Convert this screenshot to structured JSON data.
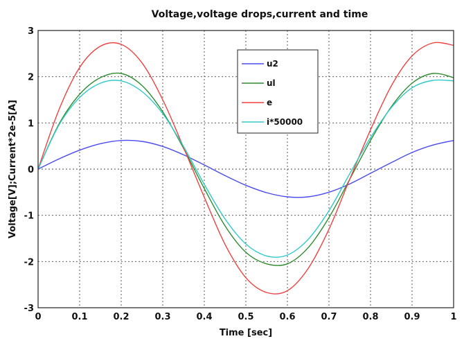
{
  "chart_data": {
    "type": "line",
    "title": "Voltage,voltage drops,current and time",
    "xlabel": "Time [sec]",
    "ylabel": "Voltage[V];Current*2e-5[A]",
    "xlim": [
      0,
      1
    ],
    "ylim": [
      -3,
      3
    ],
    "xticks": [
      "0",
      "0.1",
      "0.2",
      "0.3",
      "0.4",
      "0.5",
      "0.6",
      "0.7",
      "0.8",
      "0.9",
      "1"
    ],
    "yticks": [
      "3",
      "2",
      "1",
      "0",
      "-1",
      "-2",
      "-3"
    ],
    "grid": true,
    "legend_position": "top-center",
    "x": [
      0,
      0.05,
      0.1,
      0.15,
      0.2,
      0.25,
      0.3,
      0.35,
      0.4,
      0.45,
      0.5,
      0.55,
      0.6,
      0.65,
      0.7,
      0.75,
      0.8,
      0.85,
      0.9,
      0.95,
      1.0
    ],
    "series": [
      {
        "name": "u2",
        "color": "#4a4af0",
        "values": [
          0,
          0.22,
          0.41,
          0.55,
          0.62,
          0.6,
          0.49,
          0.31,
          0.09,
          -0.14,
          -0.35,
          -0.51,
          -0.6,
          -0.6,
          -0.5,
          -0.32,
          -0.09,
          0.14,
          0.36,
          0.52,
          0.62
        ]
      },
      {
        "name": "ul",
        "color": "#2e8b2e",
        "values": [
          0,
          0.97,
          1.62,
          1.98,
          2.07,
          1.81,
          1.24,
          0.45,
          -0.42,
          -1.23,
          -1.8,
          -2.05,
          -2.05,
          -1.7,
          -1.05,
          -0.22,
          0.62,
          1.35,
          1.86,
          2.07,
          1.98
        ]
      },
      {
        "name": "e",
        "color": "#f04040",
        "values": [
          0,
          1.28,
          2.2,
          2.66,
          2.7,
          2.3,
          1.5,
          0.47,
          -0.61,
          -1.63,
          -2.35,
          -2.67,
          -2.63,
          -2.15,
          -1.3,
          -0.22,
          0.85,
          1.8,
          2.45,
          2.73,
          2.68
        ]
      },
      {
        "name": "i*50000",
        "color": "#30c8c8",
        "values": [
          0,
          0.95,
          1.55,
          1.86,
          1.91,
          1.68,
          1.2,
          0.49,
          -0.33,
          -1.08,
          -1.62,
          -1.88,
          -1.86,
          -1.52,
          -0.9,
          -0.1,
          0.68,
          1.33,
          1.76,
          1.92,
          1.91
        ]
      }
    ]
  }
}
